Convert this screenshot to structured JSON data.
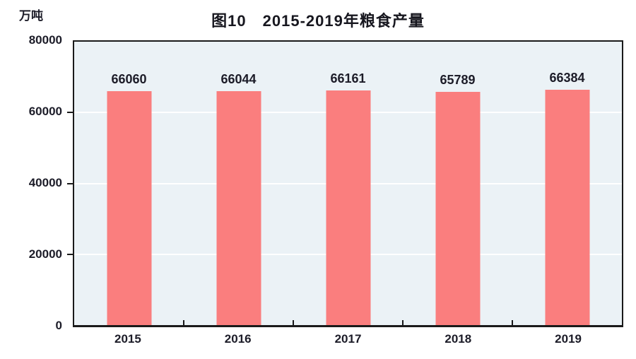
{
  "chart_data": {
    "type": "bar",
    "title": "图10　2015-2019年粮食产量",
    "unit_label": "万吨",
    "categories": [
      "2015",
      "2016",
      "2017",
      "2018",
      "2019"
    ],
    "values": [
      66060,
      66044,
      66161,
      65789,
      66384
    ],
    "data_labels": [
      "66060",
      "66044",
      "66161",
      "65789",
      "66384"
    ],
    "xlabel": "",
    "ylabel": "万吨",
    "ylim": [
      0,
      80000
    ],
    "yticks": [
      0,
      20000,
      40000,
      60000,
      80000
    ],
    "grid": "horizontal",
    "legend_position": "none",
    "colors": {
      "bar": "#FA7E7E",
      "plot_background": "#EBF2F6",
      "plot_border": "#1a1a1a",
      "gridline": "#ffffff",
      "text": "#1c1c28",
      "page_background": "#ffffff"
    }
  }
}
